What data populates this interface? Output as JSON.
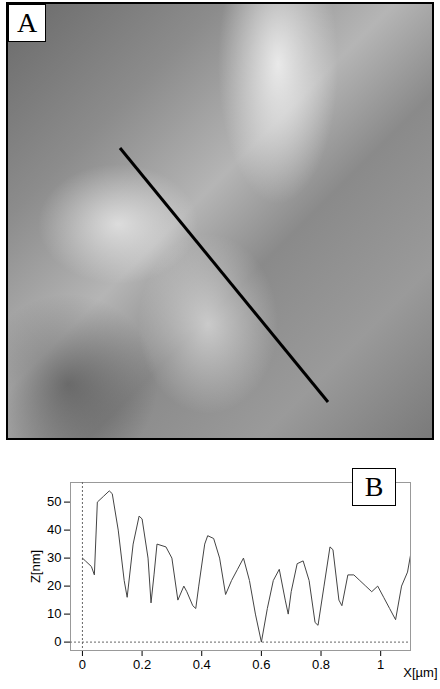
{
  "image_panel": {
    "label": "A"
  },
  "chart_data": {
    "type": "line",
    "panel_label": "B",
    "x_label": "X[µm]",
    "y_label": "Z[nm]",
    "color": "#444444",
    "x": [
      0,
      0.01,
      0.03,
      0.04,
      0.05,
      0.07,
      0.09,
      0.1,
      0.12,
      0.14,
      0.15,
      0.17,
      0.19,
      0.2,
      0.22,
      0.23,
      0.24,
      0.25,
      0.28,
      0.3,
      0.32,
      0.34,
      0.35,
      0.37,
      0.38,
      0.39,
      0.41,
      0.42,
      0.44,
      0.46,
      0.48,
      0.5,
      0.52,
      0.54,
      0.56,
      0.58,
      0.6,
      0.62,
      0.64,
      0.66,
      0.68,
      0.69,
      0.7,
      0.72,
      0.74,
      0.76,
      0.78,
      0.79,
      0.81,
      0.83,
      0.84,
      0.86,
      0.87,
      0.89,
      0.91,
      0.93,
      0.95,
      0.97,
      0.99,
      1.01,
      1.03,
      1.05,
      1.07,
      1.09,
      1.1
    ],
    "values": [
      30,
      29,
      27,
      24,
      50,
      52,
      54,
      53,
      40,
      22,
      16,
      35,
      45,
      44,
      30,
      14,
      24,
      35,
      34,
      30,
      15,
      20,
      18,
      13,
      12,
      20,
      35,
      38,
      37,
      30,
      17,
      22,
      26,
      30,
      22,
      10,
      0,
      12,
      22,
      26,
      15,
      10,
      18,
      28,
      29,
      22,
      7,
      6,
      20,
      34,
      33,
      15,
      13,
      24,
      24,
      22,
      20,
      18,
      20,
      16,
      12,
      8,
      20,
      25,
      31
    ],
    "xlim": [
      -0.04,
      1.1
    ],
    "ylim": [
      -3,
      57
    ],
    "xticks": [
      0,
      0.2,
      0.4,
      0.6,
      0.8,
      1
    ],
    "yticks": [
      0,
      10,
      20,
      30,
      40,
      50
    ]
  }
}
